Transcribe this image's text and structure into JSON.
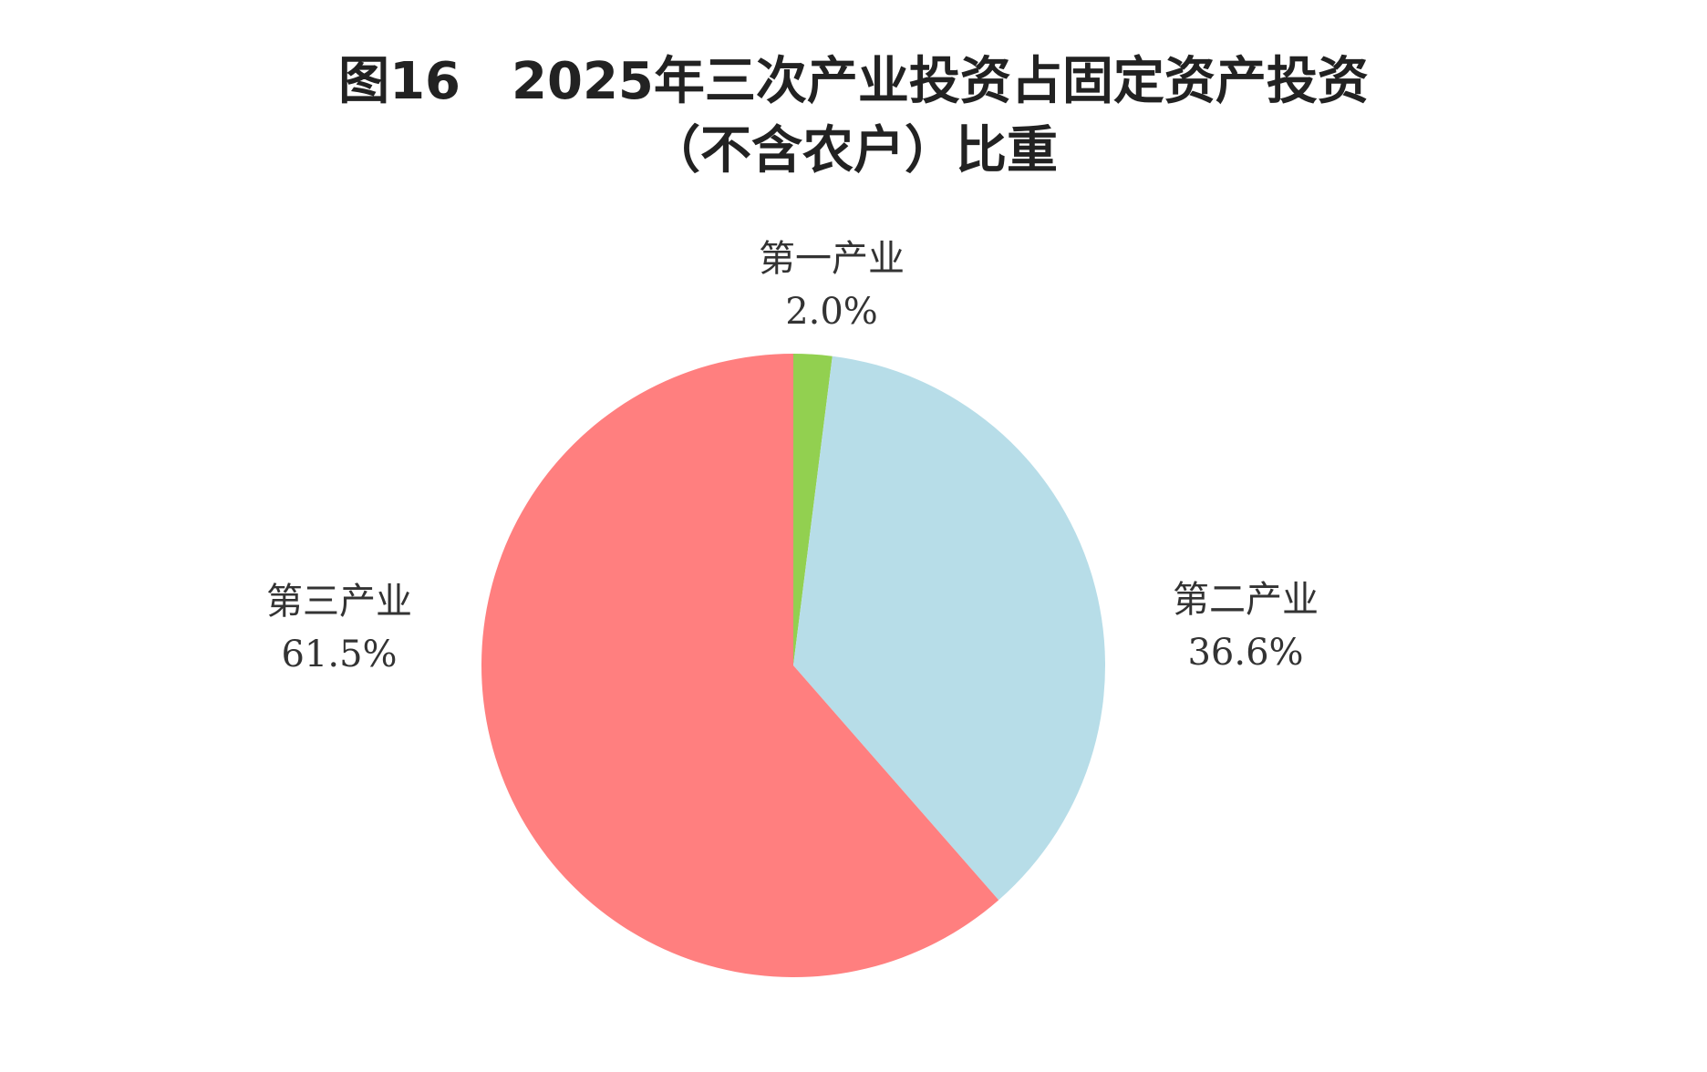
{
  "chart_data": {
    "type": "pie",
    "title_line1": "图16　2025年三次产业投资占固定资产投资",
    "title_line2": "（不含农户）比重",
    "slices": [
      {
        "label": "第一产业",
        "value": 2.0,
        "value_label": "2.0%",
        "color": "#92D050"
      },
      {
        "label": "第二产业",
        "value": 36.6,
        "value_label": "36.6%",
        "color": "#B7DDE8"
      },
      {
        "label": "第三产业",
        "value": 61.5,
        "value_label": "61.5%",
        "color": "#FF7F7F"
      }
    ],
    "start_angle": "12 o'clock",
    "direction": "clockwise"
  }
}
